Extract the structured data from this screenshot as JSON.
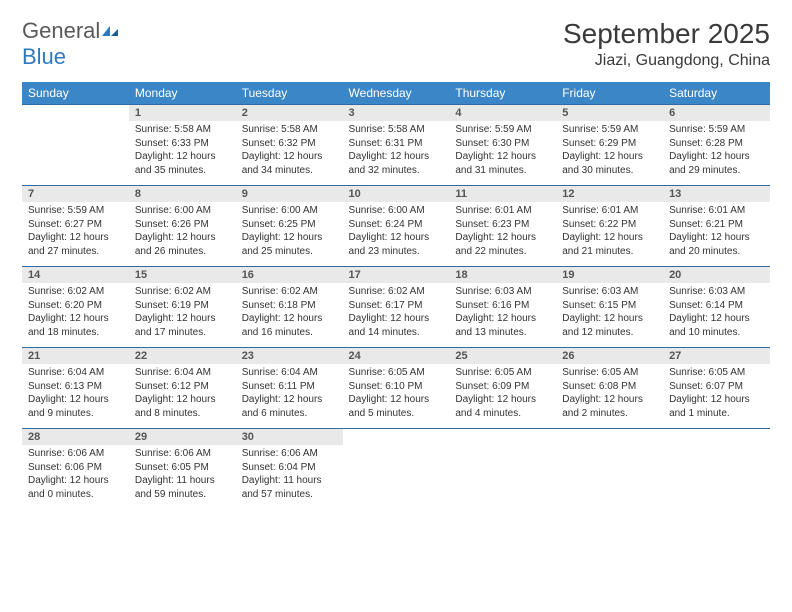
{
  "logo": {
    "text1": "General",
    "text2": "Blue"
  },
  "header": {
    "title": "September 2025",
    "location": "Jiazi, Guangdong, China"
  },
  "colors": {
    "header_bg": "#3b86c6",
    "header_text": "#ffffff",
    "row_border": "#2f6aa0",
    "daynum_bg": "#e9e9e9",
    "daynum_text": "#555555",
    "body_text": "#333333",
    "logo_gray": "#5a5a5a",
    "logo_blue": "#2f7abf"
  },
  "typography": {
    "title_fontsize": 28,
    "location_fontsize": 16,
    "dayhead_fontsize": 12,
    "daynum_fontsize": 11,
    "body_fontsize": 10
  },
  "day_names": [
    "Sunday",
    "Monday",
    "Tuesday",
    "Wednesday",
    "Thursday",
    "Friday",
    "Saturday"
  ],
  "weeks": [
    [
      {
        "n": "",
        "sr": "",
        "ss": "",
        "dl": ""
      },
      {
        "n": "1",
        "sr": "Sunrise: 5:58 AM",
        "ss": "Sunset: 6:33 PM",
        "dl": "Daylight: 12 hours and 35 minutes."
      },
      {
        "n": "2",
        "sr": "Sunrise: 5:58 AM",
        "ss": "Sunset: 6:32 PM",
        "dl": "Daylight: 12 hours and 34 minutes."
      },
      {
        "n": "3",
        "sr": "Sunrise: 5:58 AM",
        "ss": "Sunset: 6:31 PM",
        "dl": "Daylight: 12 hours and 32 minutes."
      },
      {
        "n": "4",
        "sr": "Sunrise: 5:59 AM",
        "ss": "Sunset: 6:30 PM",
        "dl": "Daylight: 12 hours and 31 minutes."
      },
      {
        "n": "5",
        "sr": "Sunrise: 5:59 AM",
        "ss": "Sunset: 6:29 PM",
        "dl": "Daylight: 12 hours and 30 minutes."
      },
      {
        "n": "6",
        "sr": "Sunrise: 5:59 AM",
        "ss": "Sunset: 6:28 PM",
        "dl": "Daylight: 12 hours and 29 minutes."
      }
    ],
    [
      {
        "n": "7",
        "sr": "Sunrise: 5:59 AM",
        "ss": "Sunset: 6:27 PM",
        "dl": "Daylight: 12 hours and 27 minutes."
      },
      {
        "n": "8",
        "sr": "Sunrise: 6:00 AM",
        "ss": "Sunset: 6:26 PM",
        "dl": "Daylight: 12 hours and 26 minutes."
      },
      {
        "n": "9",
        "sr": "Sunrise: 6:00 AM",
        "ss": "Sunset: 6:25 PM",
        "dl": "Daylight: 12 hours and 25 minutes."
      },
      {
        "n": "10",
        "sr": "Sunrise: 6:00 AM",
        "ss": "Sunset: 6:24 PM",
        "dl": "Daylight: 12 hours and 23 minutes."
      },
      {
        "n": "11",
        "sr": "Sunrise: 6:01 AM",
        "ss": "Sunset: 6:23 PM",
        "dl": "Daylight: 12 hours and 22 minutes."
      },
      {
        "n": "12",
        "sr": "Sunrise: 6:01 AM",
        "ss": "Sunset: 6:22 PM",
        "dl": "Daylight: 12 hours and 21 minutes."
      },
      {
        "n": "13",
        "sr": "Sunrise: 6:01 AM",
        "ss": "Sunset: 6:21 PM",
        "dl": "Daylight: 12 hours and 20 minutes."
      }
    ],
    [
      {
        "n": "14",
        "sr": "Sunrise: 6:02 AM",
        "ss": "Sunset: 6:20 PM",
        "dl": "Daylight: 12 hours and 18 minutes."
      },
      {
        "n": "15",
        "sr": "Sunrise: 6:02 AM",
        "ss": "Sunset: 6:19 PM",
        "dl": "Daylight: 12 hours and 17 minutes."
      },
      {
        "n": "16",
        "sr": "Sunrise: 6:02 AM",
        "ss": "Sunset: 6:18 PM",
        "dl": "Daylight: 12 hours and 16 minutes."
      },
      {
        "n": "17",
        "sr": "Sunrise: 6:02 AM",
        "ss": "Sunset: 6:17 PM",
        "dl": "Daylight: 12 hours and 14 minutes."
      },
      {
        "n": "18",
        "sr": "Sunrise: 6:03 AM",
        "ss": "Sunset: 6:16 PM",
        "dl": "Daylight: 12 hours and 13 minutes."
      },
      {
        "n": "19",
        "sr": "Sunrise: 6:03 AM",
        "ss": "Sunset: 6:15 PM",
        "dl": "Daylight: 12 hours and 12 minutes."
      },
      {
        "n": "20",
        "sr": "Sunrise: 6:03 AM",
        "ss": "Sunset: 6:14 PM",
        "dl": "Daylight: 12 hours and 10 minutes."
      }
    ],
    [
      {
        "n": "21",
        "sr": "Sunrise: 6:04 AM",
        "ss": "Sunset: 6:13 PM",
        "dl": "Daylight: 12 hours and 9 minutes."
      },
      {
        "n": "22",
        "sr": "Sunrise: 6:04 AM",
        "ss": "Sunset: 6:12 PM",
        "dl": "Daylight: 12 hours and 8 minutes."
      },
      {
        "n": "23",
        "sr": "Sunrise: 6:04 AM",
        "ss": "Sunset: 6:11 PM",
        "dl": "Daylight: 12 hours and 6 minutes."
      },
      {
        "n": "24",
        "sr": "Sunrise: 6:05 AM",
        "ss": "Sunset: 6:10 PM",
        "dl": "Daylight: 12 hours and 5 minutes."
      },
      {
        "n": "25",
        "sr": "Sunrise: 6:05 AM",
        "ss": "Sunset: 6:09 PM",
        "dl": "Daylight: 12 hours and 4 minutes."
      },
      {
        "n": "26",
        "sr": "Sunrise: 6:05 AM",
        "ss": "Sunset: 6:08 PM",
        "dl": "Daylight: 12 hours and 2 minutes."
      },
      {
        "n": "27",
        "sr": "Sunrise: 6:05 AM",
        "ss": "Sunset: 6:07 PM",
        "dl": "Daylight: 12 hours and 1 minute."
      }
    ],
    [
      {
        "n": "28",
        "sr": "Sunrise: 6:06 AM",
        "ss": "Sunset: 6:06 PM",
        "dl": "Daylight: 12 hours and 0 minutes."
      },
      {
        "n": "29",
        "sr": "Sunrise: 6:06 AM",
        "ss": "Sunset: 6:05 PM",
        "dl": "Daylight: 11 hours and 59 minutes."
      },
      {
        "n": "30",
        "sr": "Sunrise: 6:06 AM",
        "ss": "Sunset: 6:04 PM",
        "dl": "Daylight: 11 hours and 57 minutes."
      },
      {
        "n": "",
        "sr": "",
        "ss": "",
        "dl": ""
      },
      {
        "n": "",
        "sr": "",
        "ss": "",
        "dl": ""
      },
      {
        "n": "",
        "sr": "",
        "ss": "",
        "dl": ""
      },
      {
        "n": "",
        "sr": "",
        "ss": "",
        "dl": ""
      }
    ]
  ]
}
